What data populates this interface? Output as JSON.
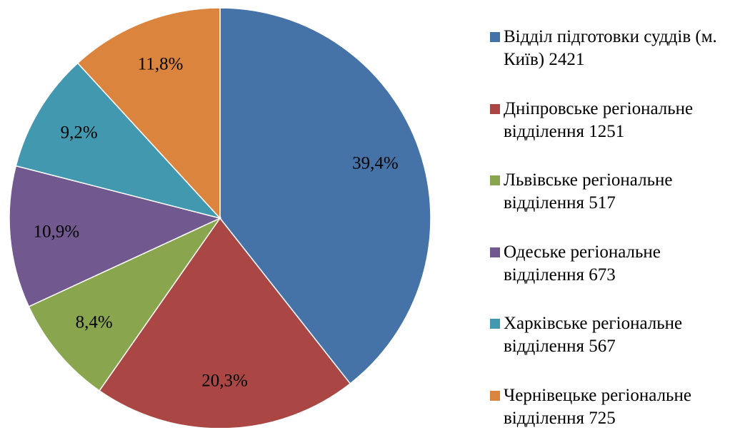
{
  "chart_data": {
    "type": "pie",
    "categories": [
      "Відділ підготовки суддів (м. Київ) 2421",
      "Дніпровське регіональне відділення 1251",
      "Львівське регіональне відділення 517",
      "Одеське регіональне відділення 673",
      "Харківське регіональне відділення 567",
      "Чернівецьке регіональне відділення 725"
    ],
    "values": [
      39.4,
      20.3,
      8.4,
      10.9,
      9.2,
      11.8
    ],
    "value_labels": [
      "39,4%",
      "20,3%",
      "8,4%",
      "10,9%",
      "9,2%",
      "11,8%"
    ],
    "colors": [
      "#4572a7",
      "#aa4643",
      "#89a54e",
      "#71588f",
      "#4198af",
      "#db843d"
    ],
    "legend": "right"
  }
}
